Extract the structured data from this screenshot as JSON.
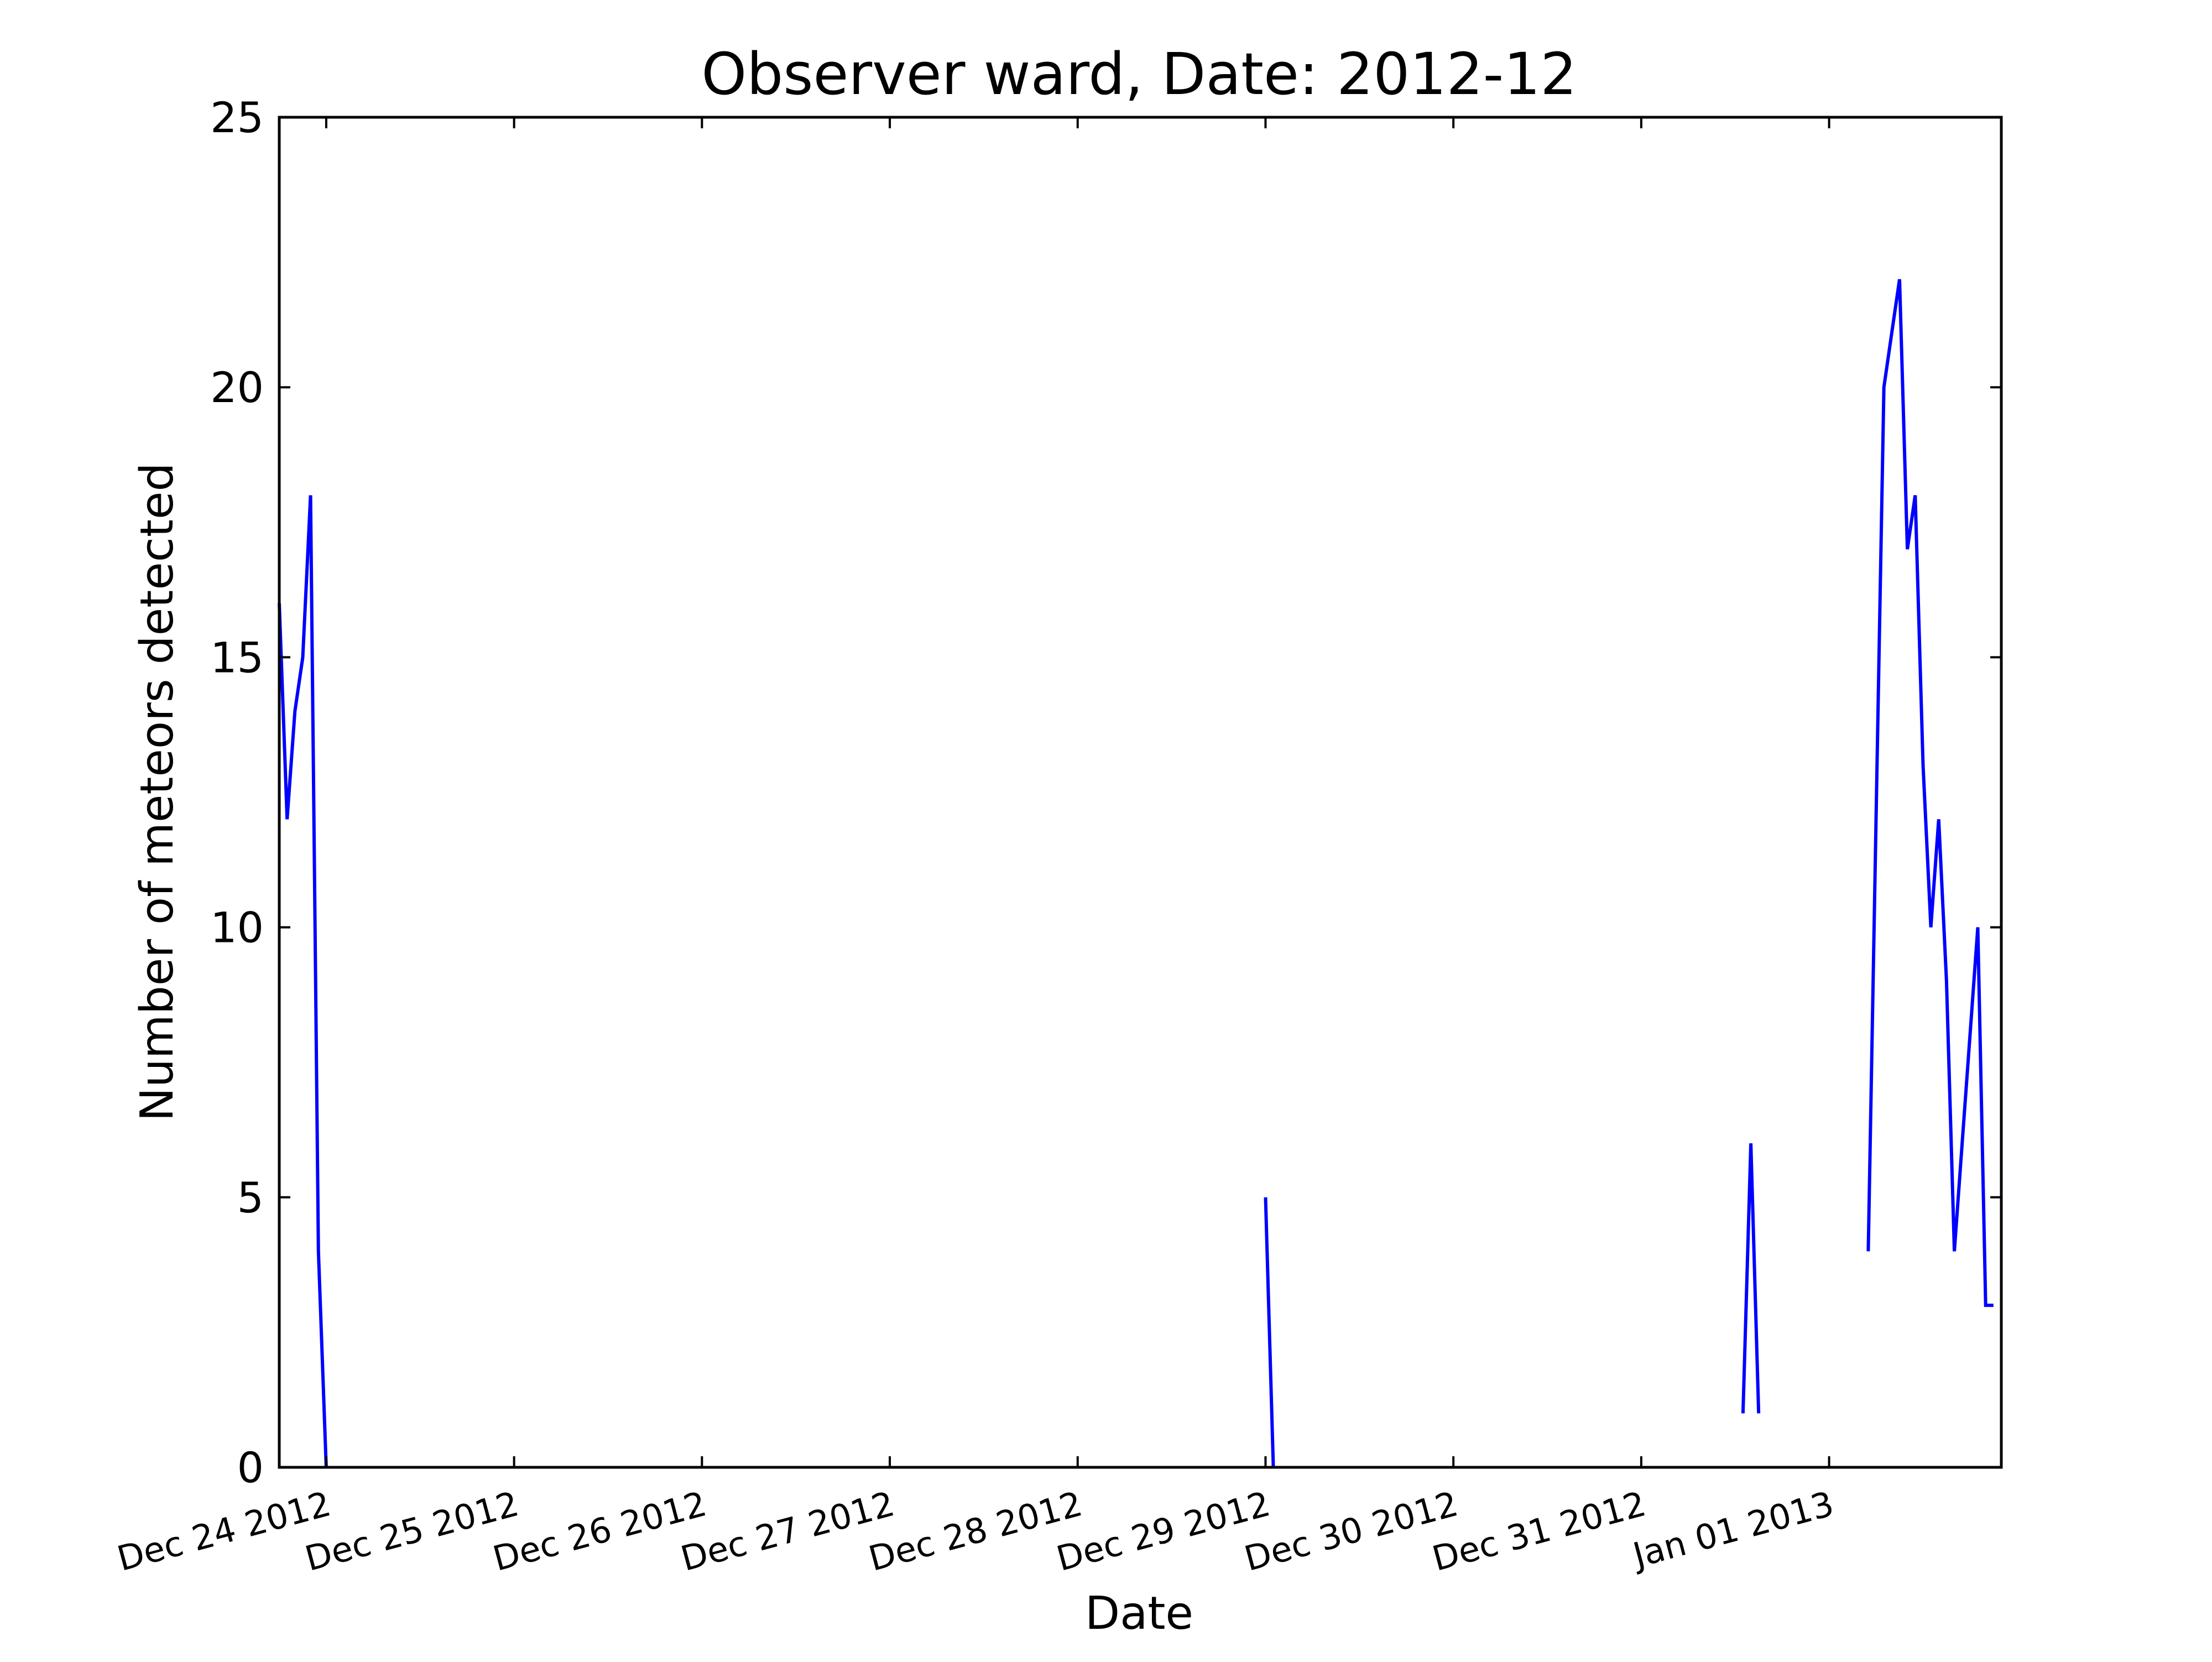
{
  "chart_data": {
    "type": "line",
    "title": "Observer ward, Date: 2012-12",
    "xlabel": "Date",
    "ylabel": "Number of meteors detected",
    "xlim": [
      "2012-12-23 18:00",
      "2013-01-01 22:00"
    ],
    "ylim": [
      0,
      25
    ],
    "yticks": [
      0,
      5,
      10,
      15,
      20,
      25
    ],
    "ytick_labels": [
      "0",
      "5",
      "10",
      "15",
      "20",
      "25"
    ],
    "xticks": [
      "2012-12-24",
      "2012-12-25",
      "2012-12-26",
      "2012-12-27",
      "2012-12-28",
      "2012-12-29",
      "2012-12-30",
      "2012-12-31",
      "2013-01-01"
    ],
    "xtick_labels": [
      "Dec 24 2012",
      "Dec 25 2012",
      "Dec 26 2012",
      "Dec 27 2012",
      "Dec 28 2012",
      "Dec 29 2012",
      "Dec 30 2012",
      "Dec 31 2012",
      "Jan 01 2013"
    ],
    "grid": false,
    "legend": false,
    "line_color": "#0000ff",
    "series": [
      {
        "segments": [
          {
            "x": [
              "2012-12-23 18:00",
              "2012-12-23 19:00",
              "2012-12-23 20:00",
              "2012-12-23 21:00",
              "2012-12-23 22:00",
              "2012-12-23 23:00",
              "2012-12-24 00:00"
            ],
            "y": [
              16,
              12,
              14,
              15,
              18,
              4,
              0
            ]
          },
          {
            "x": [
              "2012-12-29 00:00",
              "2012-12-29 01:00"
            ],
            "y": [
              5,
              0
            ]
          },
          {
            "x": [
              "2012-12-31 13:00",
              "2012-12-31 14:00",
              "2012-12-31 15:00"
            ],
            "y": [
              1,
              6,
              1
            ]
          },
          {
            "x": [
              "2013-01-01 05:00",
              "2013-01-01 06:00",
              "2013-01-01 07:00",
              "2013-01-01 08:00",
              "2013-01-01 09:00",
              "2013-01-01 10:00",
              "2013-01-01 11:00",
              "2013-01-01 12:00",
              "2013-01-01 13:00",
              "2013-01-01 14:00",
              "2013-01-01 15:00",
              "2013-01-01 16:00",
              "2013-01-01 17:00",
              "2013-01-01 18:00",
              "2013-01-01 19:00",
              "2013-01-01 20:00",
              "2013-01-01 21:00"
            ],
            "y": [
              4,
              12,
              20,
              21,
              22,
              17,
              18,
              13,
              10,
              12,
              9,
              4,
              6,
              8,
              10,
              3,
              3
            ]
          }
        ]
      }
    ]
  }
}
